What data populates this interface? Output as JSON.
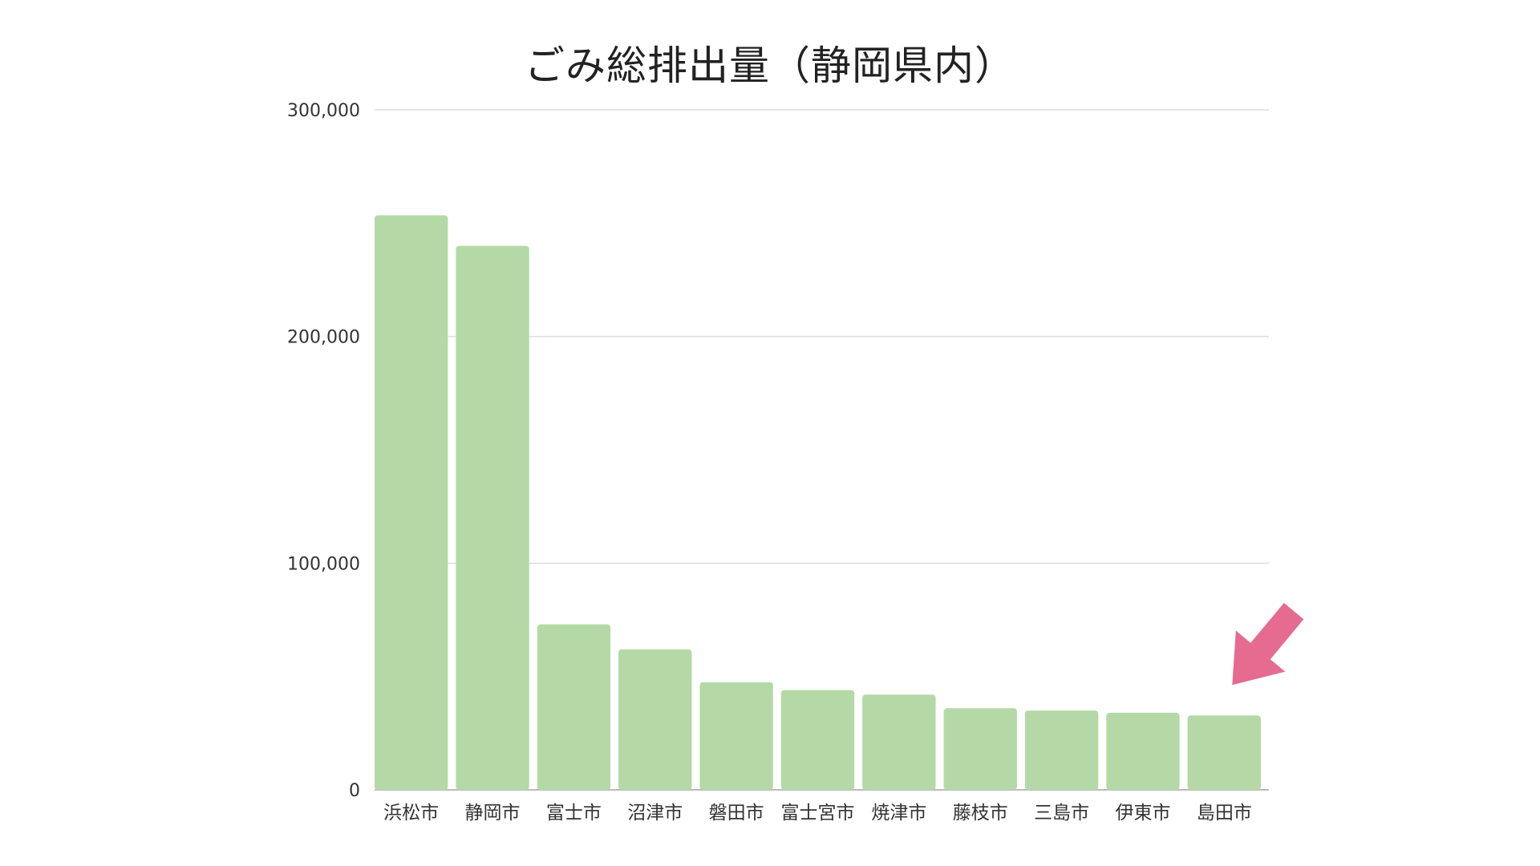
{
  "chart_data": {
    "type": "bar",
    "title": "ごみ総排出量（静岡県内）",
    "xlabel": "",
    "ylabel": "",
    "categories": [
      "浜松市",
      "静岡市",
      "富士市",
      "沼津市",
      "磐田市",
      "富士宮市",
      "焼津市",
      "藤枝市",
      "三島市",
      "伊東市",
      "島田市"
    ],
    "values": [
      253500,
      240000,
      73000,
      62000,
      47500,
      44000,
      42000,
      36000,
      35000,
      34000,
      32800
    ],
    "ylim": [
      0,
      300000
    ],
    "yticks": [
      0,
      100000,
      200000,
      300000
    ],
    "ytick_labels": [
      "0",
      "100,000",
      "200,000",
      "300,000"
    ],
    "grid": true,
    "legend": "none",
    "highlight_index": 10
  },
  "colors": {
    "bar": "#b5d9a6",
    "grid": "#dddddd",
    "axis": "#bbbbbb",
    "tick_text": "#333333",
    "arrow": "#e56b91",
    "title": "#222222"
  }
}
